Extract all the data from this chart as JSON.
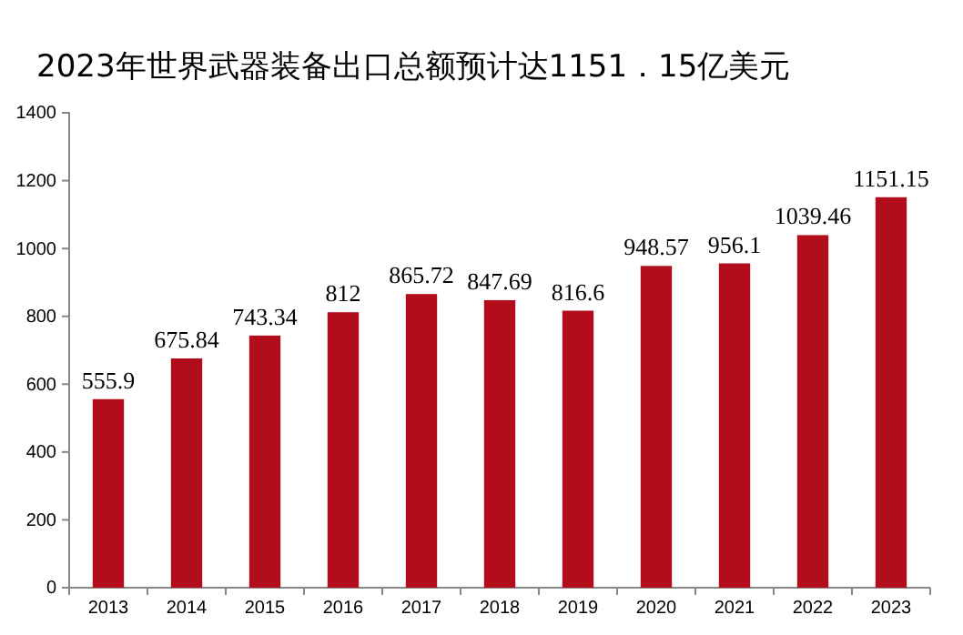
{
  "chart_data": {
    "type": "bar",
    "title": "2023年世界武器装备出口总额预计达1151．15亿美元",
    "categories": [
      "2013",
      "2014",
      "2015",
      "2016",
      "2017",
      "2018",
      "2019",
      "2020",
      "2021",
      "2022",
      "2023"
    ],
    "values": [
      555.9,
      675.84,
      743.34,
      812,
      865.72,
      847.69,
      816.6,
      948.57,
      956.1,
      1039.46,
      1151.15
    ],
    "color": "#b20d1b",
    "ylim": [
      0,
      1400
    ],
    "yticks": [
      0,
      200,
      400,
      600,
      800,
      1000,
      1200,
      1400
    ],
    "data_labels": true,
    "grid": false
  }
}
